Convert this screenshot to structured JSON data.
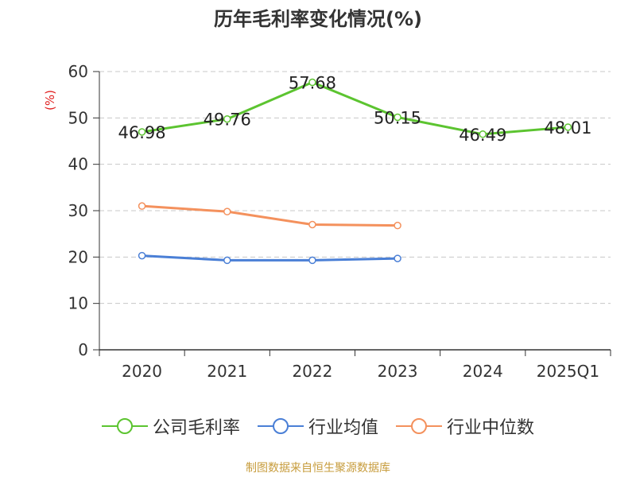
{
  "title": "历年毛利率变化情况(%)",
  "footer": "制图数据来自恒生聚源数据库",
  "chart_data": {
    "type": "line",
    "title": "历年毛利率变化情况(%)",
    "ylabel": "(%)",
    "xlabel": "",
    "categories": [
      "2020",
      "2021",
      "2022",
      "2023",
      "2024",
      "2025Q1"
    ],
    "ylim": [
      0,
      60
    ],
    "yticks": [
      0,
      10,
      20,
      30,
      40,
      50,
      60
    ],
    "grid": true,
    "legend_position": "bottom",
    "series": [
      {
        "name": "公司毛利率",
        "color": "#5cc430",
        "values": [
          46.98,
          49.76,
          57.68,
          50.15,
          46.49,
          48.01
        ],
        "show_labels": true
      },
      {
        "name": "行业均值",
        "color": "#4a7fd6",
        "values": [
          20.3,
          19.3,
          19.3,
          19.7,
          null,
          null
        ],
        "show_labels": false
      },
      {
        "name": "行业中位数",
        "color": "#f4915d",
        "values": [
          31.0,
          29.8,
          27.0,
          26.8,
          null,
          null
        ],
        "show_labels": false
      }
    ]
  }
}
